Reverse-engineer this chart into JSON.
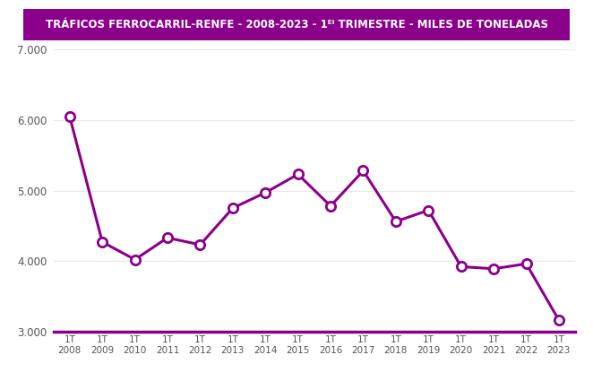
{
  "title_main": "TRÁFICOS FERROCARRIL-RENFE",
  "title_suffix": " - 2008-2023 - 1ᴱᴵ TRIMESTRE - MILES DE TONELADAS",
  "years": [
    "1T\n2008",
    "1T\n2009",
    "1T\n2010",
    "1T\n2011",
    "1T\n2012",
    "1T\n2013",
    "1T\n2014",
    "1T\n2015",
    "1T\n2016",
    "1T\n2017",
    "1T\n2018",
    "1T\n2019",
    "1T\n2020",
    "1T\n2021",
    "1T\n2022",
    "1T\n2023"
  ],
  "values": [
    6050,
    4270,
    4020,
    4330,
    4230,
    4750,
    4970,
    5230,
    4780,
    5280,
    4560,
    4720,
    3920,
    3890,
    3960,
    3160
  ],
  "line_color": "#8B008B",
  "bg_color": "#FFFFFF",
  "title_bg_color": "#8B008B",
  "title_text_color": "#FFFFFF",
  "ylim_min": 3000,
  "ylim_max": 7000,
  "yticks": [
    3000,
    4000,
    5000,
    6000,
    7000
  ]
}
